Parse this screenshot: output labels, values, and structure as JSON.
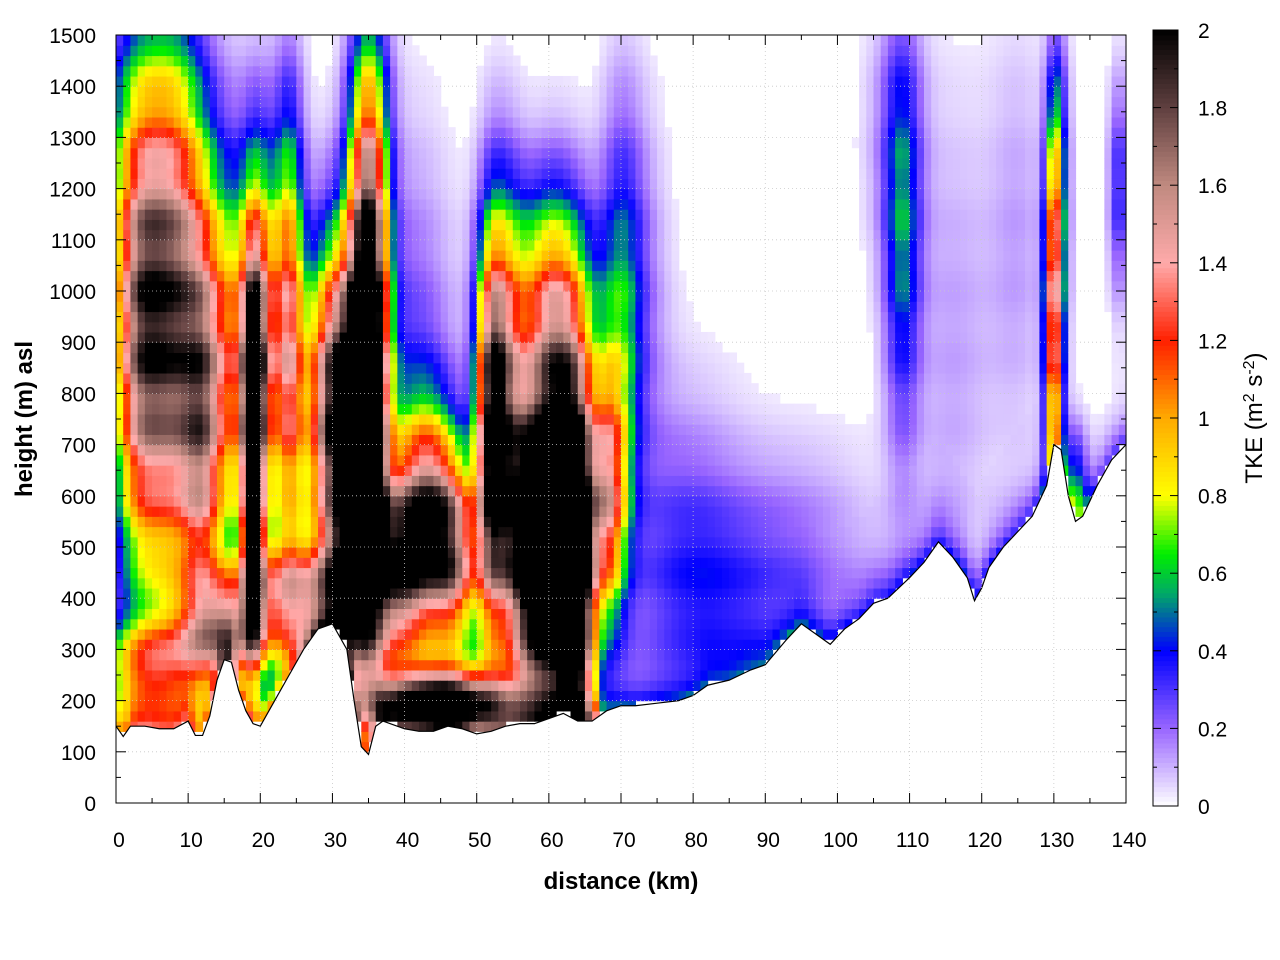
{
  "chart_data": {
    "type": "heatmap",
    "title": "",
    "xlabel": "distance (km)",
    "ylabel": "height (m) asl",
    "xlim": [
      0,
      140
    ],
    "ylim": [
      0,
      1500
    ],
    "xticks": [
      0,
      10,
      20,
      30,
      40,
      50,
      60,
      70,
      80,
      90,
      100,
      110,
      120,
      130,
      140
    ],
    "yticks": [
      0,
      100,
      200,
      300,
      400,
      500,
      600,
      700,
      800,
      900,
      1000,
      1100,
      1200,
      1300,
      1400,
      1500
    ],
    "xtick_labels": [
      "0",
      "10",
      "20",
      "30",
      "40",
      "50",
      "60",
      "70",
      "80",
      "90",
      "100",
      "110",
      "120",
      "130",
      "140"
    ],
    "ytick_labels": [
      "0",
      "100",
      "200",
      "300",
      "400",
      "500",
      "600",
      "700",
      "800",
      "900",
      "1000",
      "1100",
      "1200",
      "1300",
      "1400",
      "1500"
    ],
    "grid": true,
    "colorbar": {
      "label_prefix": "TKE (m",
      "label_sup1": "2",
      "label_mid": " s",
      "label_sup2": "-2",
      "label_suffix": ")",
      "range": [
        0,
        2
      ],
      "ticks": [
        0,
        0.2,
        0.4,
        0.6,
        0.8,
        1,
        1.2,
        1.4,
        1.6,
        1.8,
        2
      ],
      "tick_labels": [
        "0",
        "0.2",
        "0.4",
        "0.6",
        "0.8",
        "1",
        "1.2",
        "1.4",
        "1.6",
        "1.8",
        "2"
      ],
      "colormap_stops": [
        {
          "v": 0.0,
          "color": "#ffffff"
        },
        {
          "v": 0.2,
          "color": "#9966ff"
        },
        {
          "v": 0.4,
          "color": "#0000ff"
        },
        {
          "v": 0.55,
          "color": "#00aa66"
        },
        {
          "v": 0.65,
          "color": "#00ee00"
        },
        {
          "v": 0.8,
          "color": "#ffff00"
        },
        {
          "v": 1.0,
          "color": "#ffaa00"
        },
        {
          "v": 1.2,
          "color": "#ff2000"
        },
        {
          "v": 1.4,
          "color": "#ffaaaa"
        },
        {
          "v": 1.6,
          "color": "#c08a80"
        },
        {
          "v": 1.8,
          "color": "#604040"
        },
        {
          "v": 2.0,
          "color": "#000000"
        }
      ]
    },
    "terrain_profile_m": [
      [
        0,
        150
      ],
      [
        1,
        130
      ],
      [
        2,
        150
      ],
      [
        4,
        150
      ],
      [
        6,
        145
      ],
      [
        8,
        145
      ],
      [
        10,
        160
      ],
      [
        11,
        132
      ],
      [
        12,
        132
      ],
      [
        13,
        170
      ],
      [
        14,
        240
      ],
      [
        15,
        280
      ],
      [
        16,
        275
      ],
      [
        17,
        220
      ],
      [
        18,
        180
      ],
      [
        19,
        155
      ],
      [
        20,
        150
      ],
      [
        22,
        200
      ],
      [
        24,
        250
      ],
      [
        26,
        300
      ],
      [
        28,
        340
      ],
      [
        30,
        350
      ],
      [
        32,
        300
      ],
      [
        33,
        200
      ],
      [
        34,
        110
      ],
      [
        35,
        95
      ],
      [
        36,
        150
      ],
      [
        37,
        160
      ],
      [
        40,
        145
      ],
      [
        42,
        140
      ],
      [
        44,
        140
      ],
      [
        46,
        150
      ],
      [
        48,
        145
      ],
      [
        50,
        135
      ],
      [
        52,
        140
      ],
      [
        54,
        150
      ],
      [
        56,
        155
      ],
      [
        58,
        155
      ],
      [
        60,
        165
      ],
      [
        62,
        175
      ],
      [
        64,
        160
      ],
      [
        66,
        160
      ],
      [
        68,
        180
      ],
      [
        70,
        190
      ],
      [
        72,
        190
      ],
      [
        75,
        195
      ],
      [
        78,
        200
      ],
      [
        80,
        210
      ],
      [
        82,
        230
      ],
      [
        85,
        240
      ],
      [
        88,
        260
      ],
      [
        90,
        270
      ],
      [
        93,
        320
      ],
      [
        95,
        350
      ],
      [
        97,
        330
      ],
      [
        99,
        310
      ],
      [
        101,
        340
      ],
      [
        103,
        360
      ],
      [
        105,
        390
      ],
      [
        107,
        400
      ],
      [
        110,
        440
      ],
      [
        112,
        470
      ],
      [
        114,
        510
      ],
      [
        116,
        480
      ],
      [
        118,
        440
      ],
      [
        119,
        395
      ],
      [
        120,
        420
      ],
      [
        121,
        460
      ],
      [
        123,
        500
      ],
      [
        125,
        530
      ],
      [
        127,
        560
      ],
      [
        129,
        620
      ],
      [
        130,
        700
      ],
      [
        131,
        690
      ],
      [
        132,
        600
      ],
      [
        133,
        550
      ],
      [
        134,
        560
      ],
      [
        136,
        620
      ],
      [
        138,
        670
      ],
      [
        140,
        700
      ]
    ],
    "blobs": [
      {
        "x": 3,
        "y": 900,
        "sx": 2.5,
        "sy": 320,
        "v": 1.3
      },
      {
        "x": 8,
        "y": 900,
        "sx": 3.0,
        "sy": 350,
        "v": 1.5
      },
      {
        "x": 5,
        "y": 1250,
        "sx": 6.0,
        "sy": 250,
        "v": 0.35
      },
      {
        "x": 12,
        "y": 720,
        "sx": 2.0,
        "sy": 300,
        "v": 0.9
      },
      {
        "x": 5,
        "y": 260,
        "sx": 5.0,
        "sy": 70,
        "v": 0.9
      },
      {
        "x": 15,
        "y": 340,
        "sx": 4.0,
        "sy": 70,
        "v": 1.0
      },
      {
        "x": 16,
        "y": 850,
        "sx": 3.0,
        "sy": 250,
        "v": 0.9
      },
      {
        "x": 19,
        "y": 650,
        "sx": 1.0,
        "sy": 250,
        "v": 1.8
      },
      {
        "x": 20,
        "y": 900,
        "sx": 1.8,
        "sy": 250,
        "v": 1.1
      },
      {
        "x": 24,
        "y": 900,
        "sx": 1.5,
        "sy": 300,
        "v": 1.2
      },
      {
        "x": 25,
        "y": 400,
        "sx": 6.0,
        "sy": 80,
        "v": 1.1
      },
      {
        "x": 31,
        "y": 760,
        "sx": 3.0,
        "sy": 220,
        "v": 2.2
      },
      {
        "x": 35,
        "y": 800,
        "sx": 1.8,
        "sy": 330,
        "v": 2.3
      },
      {
        "x": 35,
        "y": 1250,
        "sx": 2.0,
        "sy": 230,
        "v": 0.6
      },
      {
        "x": 33,
        "y": 420,
        "sx": 2.5,
        "sy": 140,
        "v": 1.0
      },
      {
        "x": 39,
        "y": 450,
        "sx": 2.5,
        "sy": 120,
        "v": 1.3
      },
      {
        "x": 43,
        "y": 550,
        "sx": 3.0,
        "sy": 150,
        "v": 1.5
      },
      {
        "x": 47,
        "y": 480,
        "sx": 2.5,
        "sy": 130,
        "v": 1.2
      },
      {
        "x": 45,
        "y": 200,
        "sx": 7.0,
        "sy": 45,
        "v": 2.0
      },
      {
        "x": 41,
        "y": 850,
        "sx": 4.0,
        "sy": 300,
        "v": 0.25
      },
      {
        "x": 52,
        "y": 700,
        "sx": 1.5,
        "sy": 260,
        "v": 1.6
      },
      {
        "x": 54,
        "y": 800,
        "sx": 2.0,
        "sy": 260,
        "v": 0.9
      },
      {
        "x": 57,
        "y": 500,
        "sx": 2.5,
        "sy": 200,
        "v": 1.9
      },
      {
        "x": 61,
        "y": 550,
        "sx": 2.5,
        "sy": 280,
        "v": 2.3
      },
      {
        "x": 64,
        "y": 460,
        "sx": 1.6,
        "sy": 260,
        "v": 2.0
      },
      {
        "x": 60,
        "y": 1000,
        "sx": 4.5,
        "sy": 150,
        "v": 0.7
      },
      {
        "x": 68,
        "y": 600,
        "sx": 1.8,
        "sy": 170,
        "v": 1.2
      },
      {
        "x": 70,
        "y": 900,
        "sx": 2.0,
        "sy": 300,
        "v": 0.4
      },
      {
        "x": 72,
        "y": 1000,
        "sx": 3.0,
        "sy": 250,
        "v": 0.2
      },
      {
        "x": 78,
        "y": 500,
        "sx": 6.0,
        "sy": 220,
        "v": 0.22
      },
      {
        "x": 85,
        "y": 400,
        "sx": 8.0,
        "sy": 150,
        "v": 0.2
      },
      {
        "x": 95,
        "y": 500,
        "sx": 8.0,
        "sy": 150,
        "v": 0.14
      },
      {
        "x": 109,
        "y": 1100,
        "sx": 1.8,
        "sy": 280,
        "v": 0.45
      },
      {
        "x": 108,
        "y": 1300,
        "sx": 3.0,
        "sy": 200,
        "v": 0.15
      },
      {
        "x": 116,
        "y": 900,
        "sx": 4.0,
        "sy": 350,
        "v": 0.12
      },
      {
        "x": 125,
        "y": 1100,
        "sx": 3.0,
        "sy": 300,
        "v": 0.12
      },
      {
        "x": 130,
        "y": 930,
        "sx": 0.9,
        "sy": 230,
        "v": 1.3
      },
      {
        "x": 130.5,
        "y": 1220,
        "sx": 1.1,
        "sy": 200,
        "v": 0.5
      },
      {
        "x": 133,
        "y": 600,
        "sx": 1.2,
        "sy": 90,
        "v": 0.5
      },
      {
        "x": 139,
        "y": 1200,
        "sx": 1.0,
        "sy": 150,
        "v": 0.35
      }
    ]
  }
}
